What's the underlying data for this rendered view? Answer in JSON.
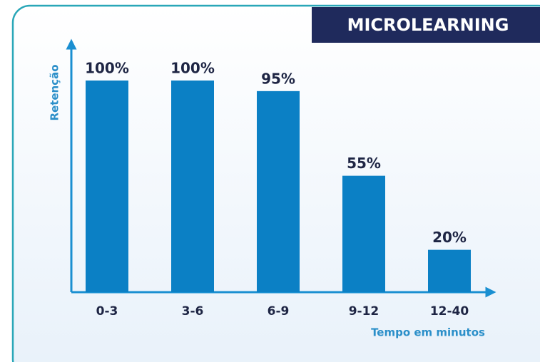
{
  "chart_data": {
    "type": "bar",
    "title": "MICROLEARNING",
    "y_label": "Retenção",
    "x_label": "Tempo em minutos",
    "categories": [
      "0-3",
      "3-6",
      "6-9",
      "9-12",
      "12-40"
    ],
    "values": [
      100,
      100,
      95,
      55,
      20
    ],
    "value_labels": [
      "100%",
      "100%",
      "95%",
      "55%",
      "20%"
    ],
    "color": "#0b80c5",
    "ylim": [
      0,
      100
    ]
  }
}
